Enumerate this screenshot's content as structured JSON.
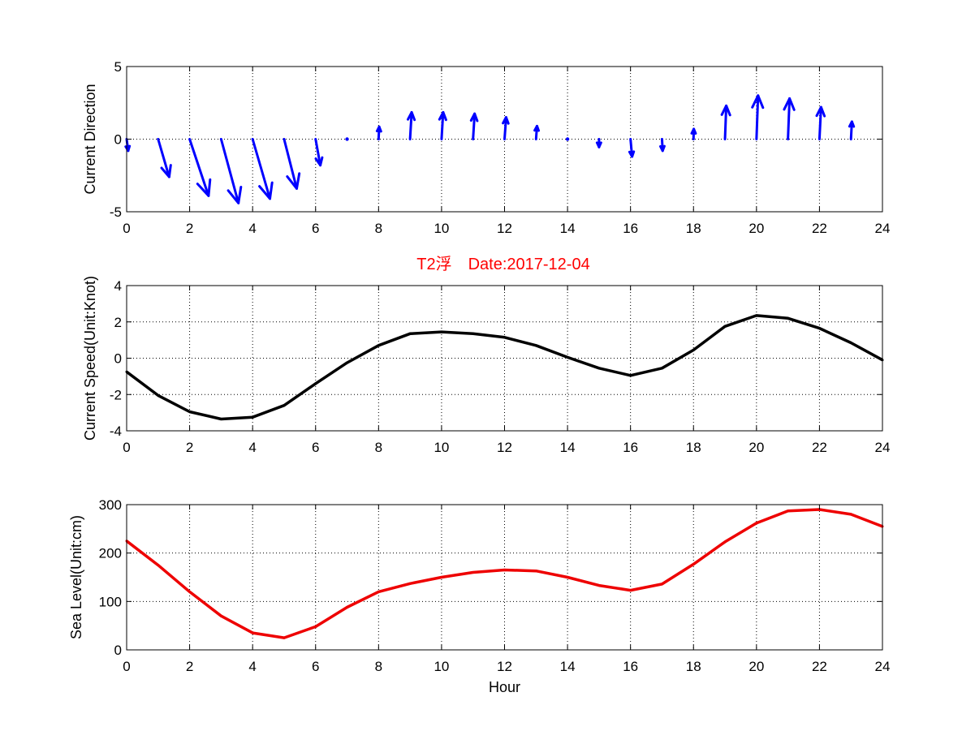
{
  "figure": {
    "title": "T2浮　Date:2017-12-04",
    "title_color": "#ff0000",
    "background": "#ffffff"
  },
  "chart_data": [
    {
      "type": "quiver",
      "name": "direction",
      "ylabel": "Current Direction",
      "xlabel": "",
      "xlim": [
        0,
        24
      ],
      "ylim": [
        -5,
        5
      ],
      "xticks": [
        0,
        2,
        4,
        6,
        8,
        10,
        12,
        14,
        16,
        18,
        20,
        22,
        24
      ],
      "yticks": [
        -5,
        0,
        5
      ],
      "grid": true,
      "color": "#0000ff",
      "x": [
        0,
        1,
        2,
        3,
        4,
        5,
        6,
        7,
        8,
        9,
        10,
        11,
        12,
        13,
        14,
        15,
        16,
        17,
        18,
        19,
        20,
        21,
        22,
        23
      ],
      "u": [
        0.05,
        0.35,
        0.6,
        0.55,
        0.55,
        0.4,
        0.15,
        0.02,
        0.02,
        0.05,
        0.05,
        0.05,
        0.05,
        0.03,
        0,
        0,
        0.05,
        0.02,
        0.01,
        0.04,
        0.05,
        0.05,
        0.05,
        0.03
      ],
      "v": [
        -0.8,
        -2.6,
        -3.9,
        -4.4,
        -4.1,
        -3.4,
        -1.8,
        -0.2,
        0.85,
        1.85,
        1.85,
        1.75,
        1.5,
        0.9,
        0.15,
        -0.55,
        -1.2,
        -0.8,
        0.7,
        2.3,
        3,
        2.8,
        2.2,
        1.2
      ]
    },
    {
      "type": "line",
      "name": "speed",
      "ylabel": "Current Speed(Unit:Knot)",
      "xlabel": "",
      "xlim": [
        0,
        24
      ],
      "ylim": [
        -4,
        4
      ],
      "xticks": [
        0,
        2,
        4,
        6,
        8,
        10,
        12,
        14,
        16,
        18,
        20,
        22,
        24
      ],
      "yticks": [
        -4,
        -2,
        0,
        2,
        4
      ],
      "grid": true,
      "color": "#000000",
      "x": [
        0,
        1,
        2,
        3,
        4,
        5,
        6,
        7,
        8,
        9,
        10,
        11,
        12,
        13,
        14,
        15,
        16,
        17,
        18,
        19,
        20,
        21,
        22,
        23,
        24
      ],
      "y": [
        -0.75,
        -2.05,
        -2.95,
        -3.35,
        -3.25,
        -2.6,
        -1.4,
        -0.25,
        0.7,
        1.35,
        1.45,
        1.35,
        1.15,
        0.7,
        0.05,
        -0.55,
        -0.95,
        -0.55,
        0.45,
        1.75,
        2.35,
        2.2,
        1.65,
        0.85,
        -0.1
      ]
    },
    {
      "type": "line",
      "name": "sealevel",
      "ylabel": "Sea Level(Unit:cm)",
      "xlabel": "Hour",
      "xlim": [
        0,
        24
      ],
      "ylim": [
        0,
        300
      ],
      "xticks": [
        0,
        2,
        4,
        6,
        8,
        10,
        12,
        14,
        16,
        18,
        20,
        22,
        24
      ],
      "yticks": [
        0,
        100,
        200,
        300
      ],
      "grid": true,
      "color": "#ee0000",
      "x": [
        0,
        1,
        2,
        3,
        4,
        5,
        6,
        7,
        8,
        9,
        10,
        11,
        12,
        13,
        14,
        15,
        16,
        17,
        18,
        19,
        20,
        21,
        22,
        23,
        24
      ],
      "y": [
        225,
        175,
        120,
        70,
        35,
        25,
        48,
        88,
        120,
        137,
        150,
        160,
        165,
        163,
        150,
        133,
        123,
        136,
        177,
        223,
        262,
        287,
        290,
        280,
        255
      ]
    }
  ]
}
